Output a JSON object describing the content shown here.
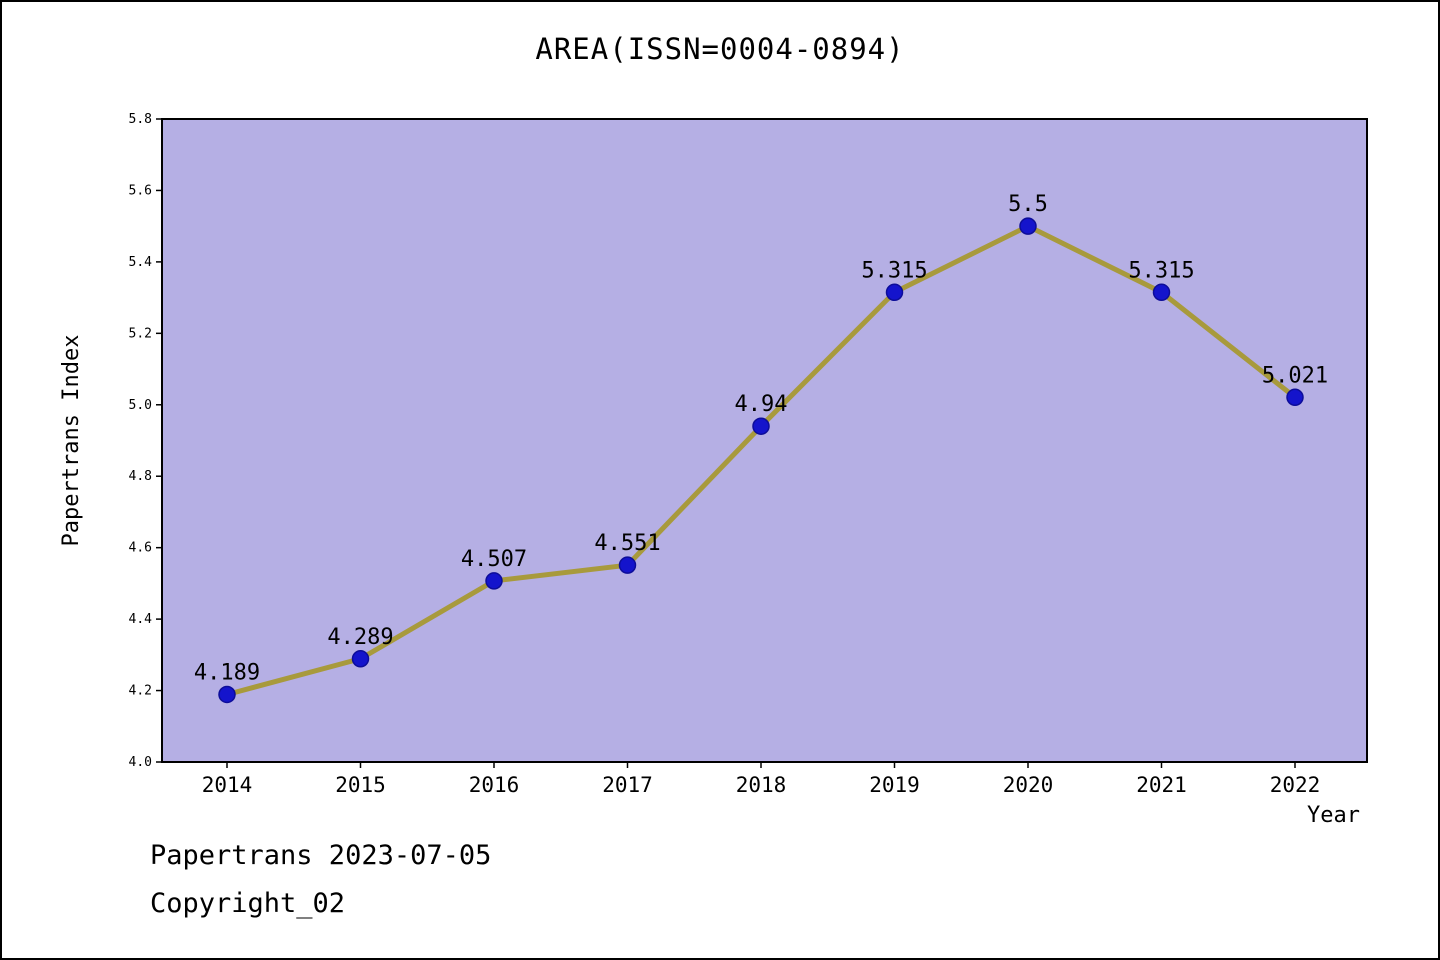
{
  "title": "AREA(ISSN=0004-0894)",
  "footer": {
    "line1": "Papertrans 2023-07-05",
    "line2": "Copyright_02"
  },
  "chart_data": {
    "type": "line",
    "title": "AREA(ISSN=0004-0894)",
    "x": [
      2014,
      2015,
      2016,
      2017,
      2018,
      2019,
      2020,
      2021,
      2022
    ],
    "series": [
      {
        "name": "Papertrans Index",
        "values": [
          4.189,
          4.289,
          4.507,
          4.551,
          4.94,
          5.315,
          5.5,
          5.315,
          5.021
        ]
      }
    ],
    "point_labels": [
      "4.189",
      "4.289",
      "4.507",
      "4.551",
      "4.94",
      "5.315",
      "5.5",
      "5.315",
      "5.021"
    ],
    "xlabel": "Year",
    "ylabel": "Papertrans Index",
    "ylim": [
      4.0,
      5.8
    ],
    "ytick_step": 0.2,
    "ytick_labels": [
      "4.0",
      "4.2",
      "4.4",
      "4.6",
      "4.8",
      "5.0",
      "5.2",
      "5.4",
      "5.6",
      "5.8"
    ],
    "grid": false,
    "legend": "none",
    "colors": {
      "plot_bg": "#b5afe4",
      "line": "#a89a3c",
      "marker": "#1414cc",
      "marker_edge": "#0d0d99",
      "text": "#000000",
      "axis": "#000000"
    }
  }
}
